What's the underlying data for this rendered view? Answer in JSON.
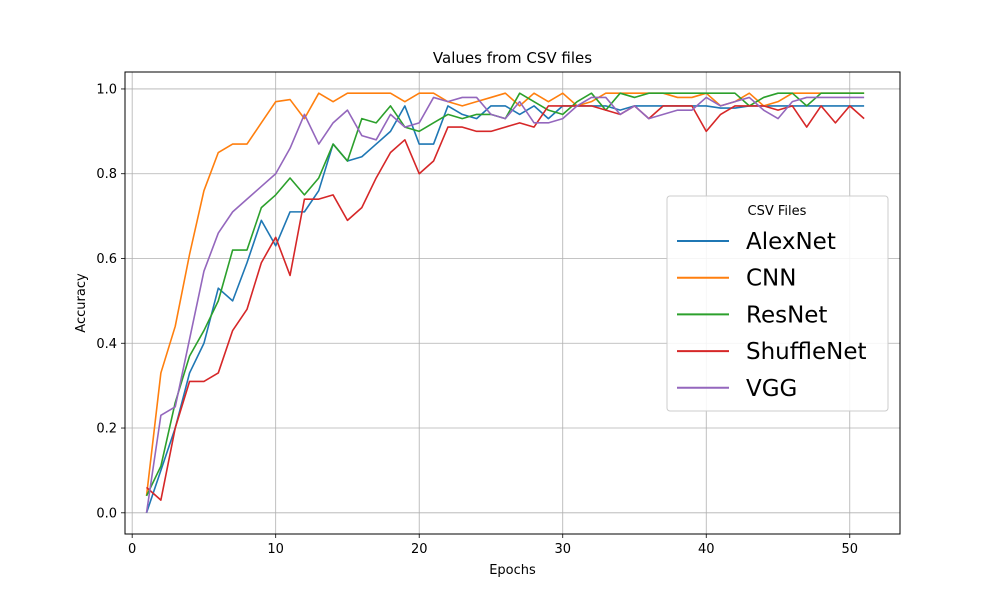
{
  "chart_data": {
    "type": "line",
    "title": "Values from CSV files",
    "xlabel": "Epochs",
    "ylabel": "Accuracy",
    "xlim": [
      -0.5,
      53.5
    ],
    "ylim": [
      -0.05,
      1.04
    ],
    "xticks": [
      0,
      10,
      20,
      30,
      40,
      50
    ],
    "yticks": [
      0.0,
      0.2,
      0.4,
      0.6,
      0.8,
      1.0
    ],
    "xtick_labels": [
      "0",
      "10",
      "20",
      "30",
      "40",
      "50"
    ],
    "ytick_labels": [
      "0.0",
      "0.2",
      "0.4",
      "0.6",
      "0.8",
      "1.0"
    ],
    "grid": true,
    "legend": {
      "title": "CSV Files",
      "placement": "center-right"
    },
    "x": [
      1,
      2,
      3,
      4,
      5,
      6,
      7,
      8,
      9,
      10,
      11,
      12,
      13,
      14,
      15,
      16,
      17,
      18,
      19,
      20,
      21,
      22,
      23,
      24,
      25,
      26,
      27,
      28,
      29,
      30,
      31,
      32,
      33,
      34,
      35,
      36,
      37,
      38,
      39,
      40,
      41,
      42,
      43,
      44,
      45,
      46,
      47,
      48,
      49,
      50,
      51
    ],
    "series": [
      {
        "name": "AlexNet",
        "color": "#1f77b4",
        "values": [
          0.0,
          0.1,
          0.2,
          0.33,
          0.4,
          0.53,
          0.5,
          0.59,
          0.69,
          0.63,
          0.71,
          0.71,
          0.76,
          0.87,
          0.83,
          0.84,
          0.87,
          0.9,
          0.96,
          0.87,
          0.87,
          0.96,
          0.94,
          0.93,
          0.96,
          0.96,
          0.94,
          0.96,
          0.93,
          0.96,
          0.96,
          0.96,
          0.96,
          0.95,
          0.96,
          0.96,
          0.96,
          0.96,
          0.96,
          0.96,
          0.955,
          0.955,
          0.96,
          0.96,
          0.96,
          0.96,
          0.96,
          0.96,
          0.96,
          0.96,
          0.96
        ]
      },
      {
        "name": "CNN",
        "color": "#ff7f0e",
        "values": [
          0.04,
          0.33,
          0.44,
          0.61,
          0.76,
          0.85,
          0.87,
          0.87,
          0.92,
          0.97,
          0.975,
          0.93,
          0.99,
          0.97,
          0.99,
          0.99,
          0.99,
          0.99,
          0.97,
          0.99,
          0.99,
          0.97,
          0.96,
          0.97,
          0.98,
          0.99,
          0.96,
          0.99,
          0.97,
          0.99,
          0.96,
          0.97,
          0.99,
          0.99,
          0.99,
          0.99,
          0.99,
          0.98,
          0.98,
          0.99,
          0.96,
          0.97,
          0.99,
          0.96,
          0.97,
          0.99,
          0.99,
          0.99,
          0.99,
          0.99,
          0.99
        ]
      },
      {
        "name": "ResNet",
        "color": "#2ca02c",
        "values": [
          0.04,
          0.11,
          0.26,
          0.37,
          0.43,
          0.5,
          0.62,
          0.62,
          0.72,
          0.75,
          0.79,
          0.75,
          0.79,
          0.87,
          0.83,
          0.93,
          0.92,
          0.96,
          0.91,
          0.9,
          0.92,
          0.94,
          0.93,
          0.94,
          0.94,
          0.93,
          0.99,
          0.97,
          0.95,
          0.94,
          0.97,
          0.99,
          0.95,
          0.99,
          0.98,
          0.99,
          0.99,
          0.99,
          0.99,
          0.99,
          0.99,
          0.99,
          0.96,
          0.98,
          0.99,
          0.99,
          0.96,
          0.99,
          0.99,
          0.99,
          0.99
        ]
      },
      {
        "name": "ShuffleNet",
        "color": "#d62728",
        "values": [
          0.06,
          0.03,
          0.2,
          0.31,
          0.31,
          0.33,
          0.43,
          0.48,
          0.59,
          0.65,
          0.56,
          0.74,
          0.74,
          0.75,
          0.69,
          0.72,
          0.79,
          0.85,
          0.88,
          0.8,
          0.83,
          0.91,
          0.91,
          0.9,
          0.9,
          0.91,
          0.92,
          0.91,
          0.96,
          0.96,
          0.96,
          0.96,
          0.95,
          0.94,
          0.96,
          0.93,
          0.96,
          0.96,
          0.96,
          0.9,
          0.94,
          0.96,
          0.96,
          0.96,
          0.95,
          0.96,
          0.91,
          0.96,
          0.92,
          0.96,
          0.93
        ]
      },
      {
        "name": "VGG",
        "color": "#9467bd",
        "values": [
          0.0,
          0.23,
          0.25,
          0.41,
          0.57,
          0.66,
          0.71,
          0.74,
          0.77,
          0.8,
          0.86,
          0.94,
          0.87,
          0.92,
          0.95,
          0.89,
          0.88,
          0.94,
          0.91,
          0.92,
          0.98,
          0.97,
          0.98,
          0.98,
          0.94,
          0.93,
          0.97,
          0.92,
          0.92,
          0.93,
          0.96,
          0.98,
          0.98,
          0.94,
          0.96,
          0.93,
          0.94,
          0.95,
          0.95,
          0.98,
          0.96,
          0.97,
          0.98,
          0.95,
          0.93,
          0.97,
          0.98,
          0.98,
          0.98,
          0.98,
          0.98
        ]
      }
    ]
  }
}
